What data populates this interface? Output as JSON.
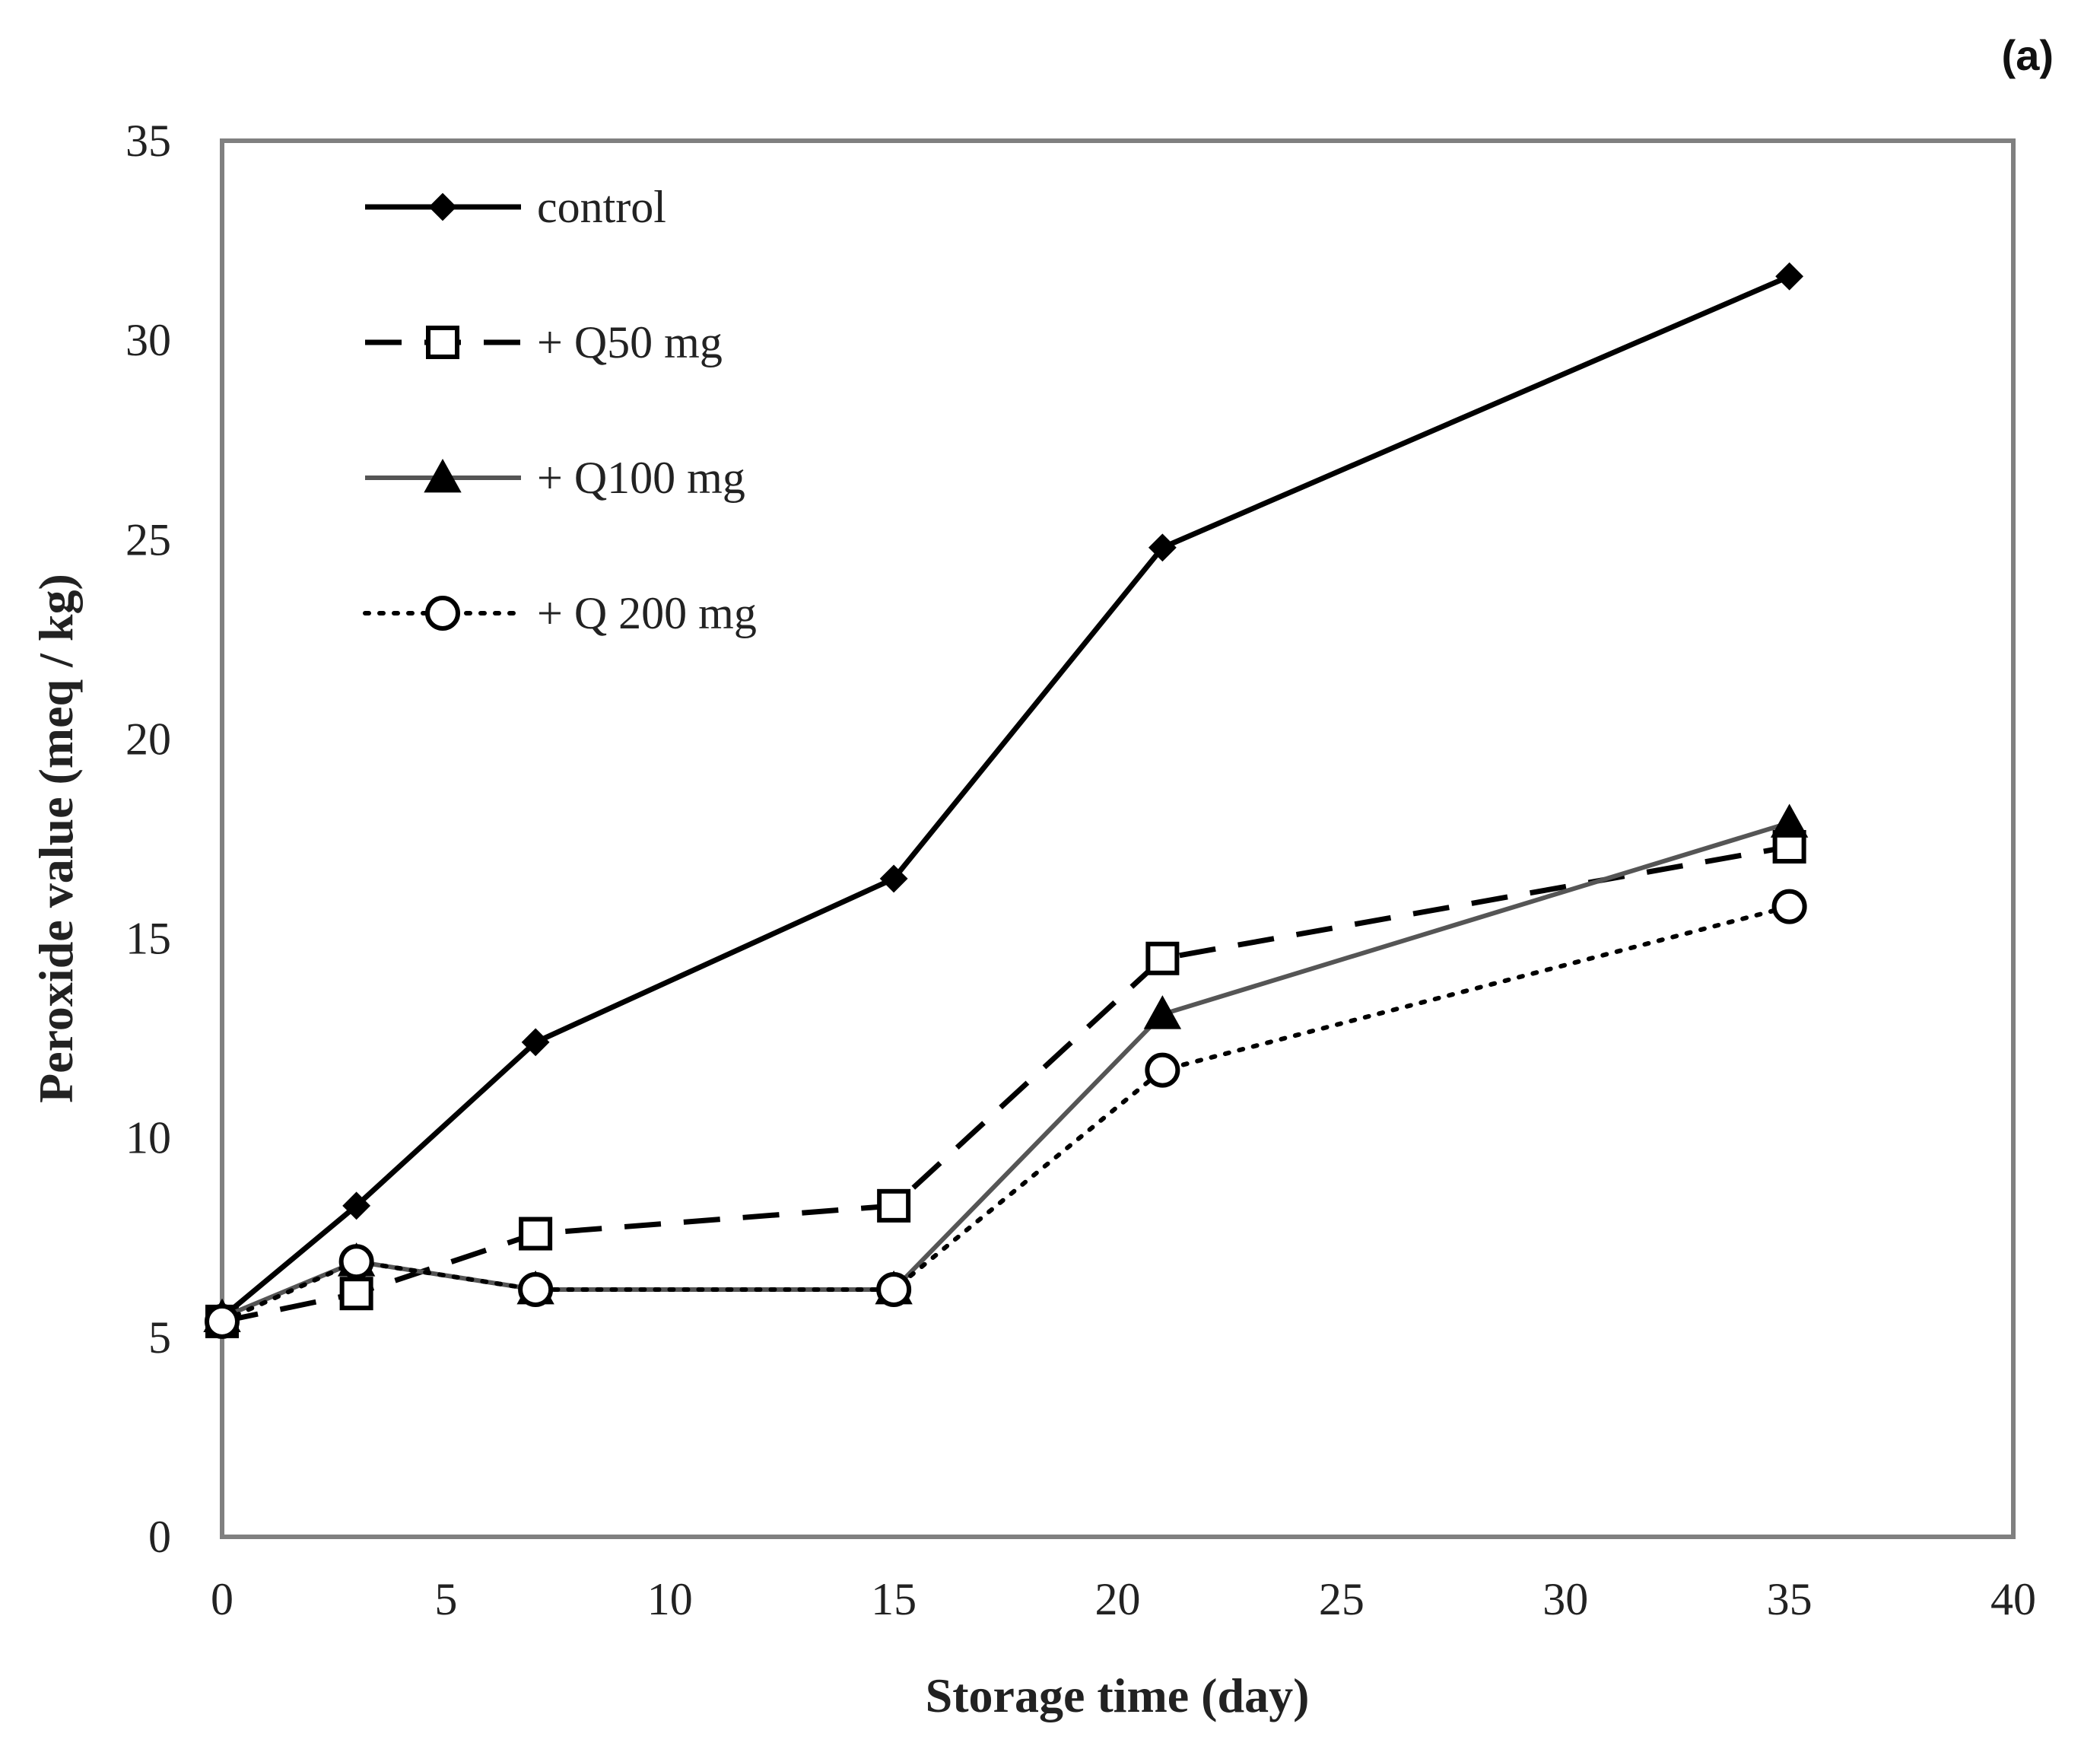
{
  "chart_data": {
    "type": "line",
    "panel_label": "(a)",
    "title": "",
    "xlabel": "Storage time (day)",
    "ylabel": "Peroxide value (meq / kg)",
    "xlim": [
      0,
      40
    ],
    "ylim": [
      0,
      35
    ],
    "xticks": [
      0,
      5,
      10,
      15,
      20,
      25,
      30,
      35,
      40
    ],
    "yticks": [
      0,
      5,
      10,
      15,
      20,
      25,
      30,
      35
    ],
    "grid": false,
    "legend_position": "top-left",
    "x": [
      0,
      3,
      7,
      15,
      21,
      35
    ],
    "series": [
      {
        "name": "control",
        "values": [
          5.5,
          8.3,
          12.4,
          16.5,
          24.8,
          31.6
        ],
        "color": "#000000",
        "line": "solid",
        "marker": "diamond"
      },
      {
        "name": "+ Q50 mg",
        "values": [
          5.4,
          6.1,
          7.6,
          8.3,
          14.5,
          17.3
        ],
        "color": "#000000",
        "line": "dashed",
        "marker": "square-open"
      },
      {
        "name": "+ Q100 mg",
        "values": [
          5.5,
          6.9,
          6.2,
          6.2,
          13.1,
          17.9
        ],
        "color": "#555555",
        "line": "solid",
        "marker": "triangle"
      },
      {
        "name": "+ Q 200 mg",
        "values": [
          5.4,
          6.9,
          6.2,
          6.2,
          11.7,
          15.8
        ],
        "color": "#000000",
        "line": "dotted",
        "marker": "circle-open"
      }
    ]
  }
}
